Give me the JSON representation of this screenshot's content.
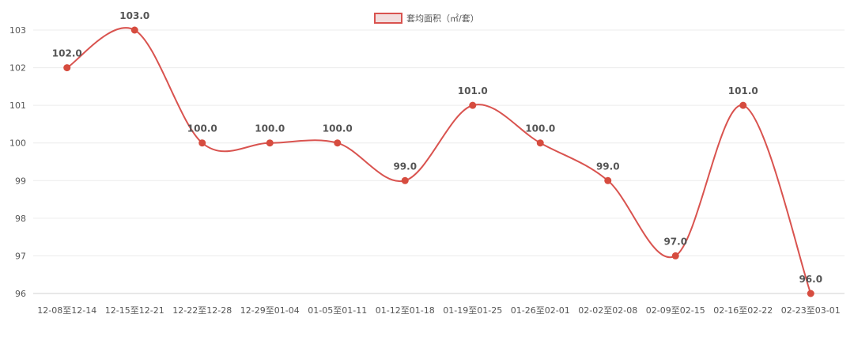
{
  "chart_data": {
    "type": "line",
    "title": "",
    "xlabel": "",
    "ylabel": "",
    "categories": [
      "12-08至12-14",
      "12-15至12-21",
      "12-22至12-28",
      "12-29至01-04",
      "01-05至01-11",
      "01-12至01-18",
      "01-19至01-25",
      "01-26至02-01",
      "02-02至02-08",
      "02-09至02-15",
      "02-16至02-22",
      "02-23至03-01"
    ],
    "series": [
      {
        "name": "套均面积（㎡/套）",
        "values": [
          102.0,
          103.0,
          100.0,
          100.0,
          100.0,
          99.0,
          101.0,
          100.0,
          99.0,
          97.0,
          101.0,
          96.0
        ],
        "value_labels": [
          "102.0",
          "103.0",
          "100.0",
          "100.0",
          "100.0",
          "99.0",
          "101.0",
          "100.0",
          "99.0",
          "97.0",
          "101.0",
          "96.0"
        ]
      }
    ],
    "ylim": [
      96,
      103
    ],
    "yticks": [
      "96",
      "97",
      "98",
      "99",
      "100",
      "101",
      "102",
      "103"
    ],
    "smooth": true,
    "grid": true,
    "legend_position": "top-center",
    "colors": {
      "line": "#d9534f",
      "point": "#d64c3f",
      "grid": "#ececec",
      "axis": "#d0d0d0",
      "legend_fill": "#f2dede"
    }
  }
}
